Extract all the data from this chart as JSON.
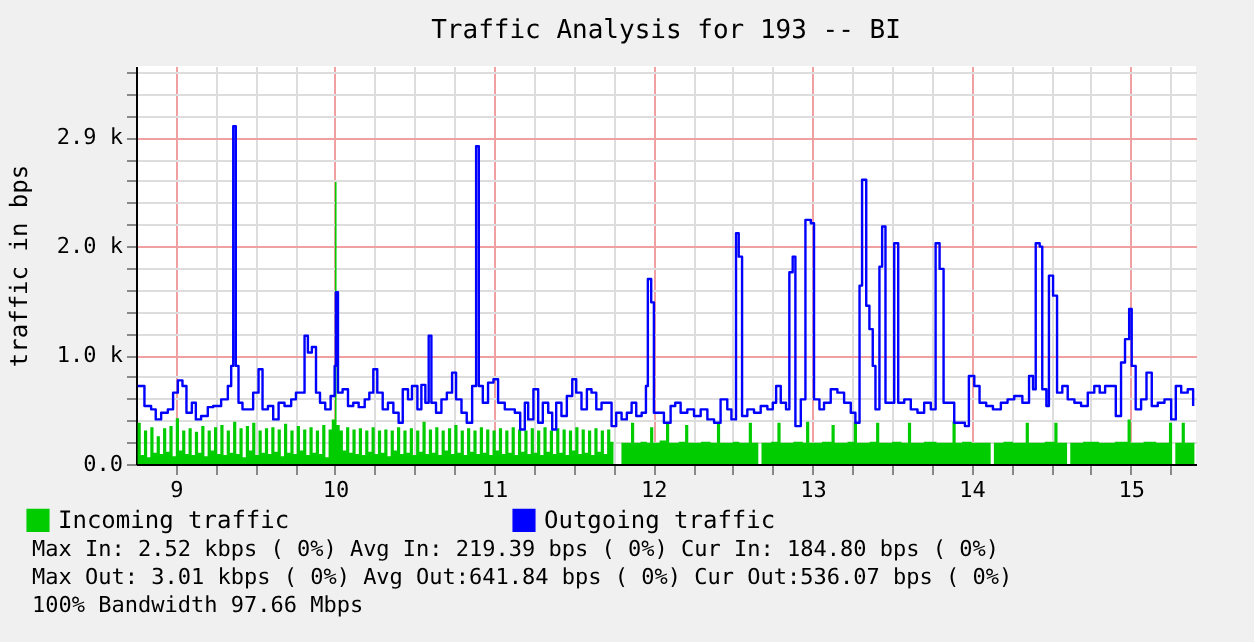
{
  "chart_data": {
    "type": "line",
    "title": "Traffic Analysis for 193 -- BI",
    "ylabel": "traffic in bps",
    "xlim": [
      8.75,
      15.41
    ],
    "ylim": [
      0,
      3570
    ],
    "xticks": [
      9,
      {
        "value": 9.25,
        "label": null
      },
      {
        "value": 9.5,
        "label": null
      },
      {
        "value": 9.75,
        "label": null
      },
      10,
      {
        "value": 10.25,
        "label": null
      },
      {
        "value": 10.5,
        "label": null
      },
      {
        "value": 10.75,
        "label": null
      },
      11,
      {
        "value": 11.25,
        "label": null
      },
      {
        "value": 11.5,
        "label": null
      },
      {
        "value": 11.75,
        "label": null
      },
      12,
      {
        "value": 12.25,
        "label": null
      },
      {
        "value": 12.5,
        "label": null
      },
      {
        "value": 12.75,
        "label": null
      },
      13,
      {
        "value": 13.25,
        "label": null
      },
      {
        "value": 13.5,
        "label": null
      },
      {
        "value": 13.75,
        "label": null
      },
      14,
      {
        "value": 14.25,
        "label": null
      },
      {
        "value": 14.5,
        "label": null
      },
      {
        "value": 14.75,
        "label": null
      },
      15,
      {
        "value": 15.25,
        "label": null
      }
    ],
    "yticks": [
      {
        "value": 0,
        "label": "0.0"
      },
      {
        "value": 195,
        "label": null
      },
      {
        "value": 391,
        "label": null
      },
      {
        "value": 586,
        "label": null
      },
      {
        "value": 781,
        "label": null
      },
      {
        "value": 977,
        "label": "1.0 k"
      },
      {
        "value": 1172,
        "label": null
      },
      {
        "value": 1367,
        "label": null
      },
      {
        "value": 1563,
        "label": null
      },
      {
        "value": 1758,
        "label": null
      },
      {
        "value": 1953,
        "label": "2.0 k"
      },
      {
        "value": 2148,
        "label": null
      },
      {
        "value": 2344,
        "label": null
      },
      {
        "value": 2539,
        "label": null
      },
      {
        "value": 2734,
        "label": null
      },
      {
        "value": 2930,
        "label": "2.9 k"
      },
      {
        "value": 3125,
        "label": null
      },
      {
        "value": 3320,
        "label": null
      },
      {
        "value": 3516,
        "label": null
      }
    ],
    "grid": true,
    "legend": "bottom",
    "marker": "none",
    "line_style": "solid",
    "series": [
      {
        "name": "Incoming traffic",
        "type": "area",
        "color": "#00cc00",
        "x": [
          8.76,
          8.78,
          8.8,
          8.82,
          8.84,
          8.86,
          8.88,
          8.9,
          8.92,
          8.94,
          8.96,
          8.98,
          9.0,
          9.02,
          9.04,
          9.06,
          9.08,
          9.1,
          9.12,
          9.14,
          9.16,
          9.18,
          9.2,
          9.22,
          9.24,
          9.26,
          9.28,
          9.3,
          9.32,
          9.34,
          9.36,
          9.38,
          9.4,
          9.42,
          9.44,
          9.46,
          9.48,
          9.5,
          9.52,
          9.54,
          9.56,
          9.58,
          9.6,
          9.62,
          9.64,
          9.66,
          9.68,
          9.7,
          9.72,
          9.74,
          9.76,
          9.78,
          9.8,
          9.82,
          9.84,
          9.86,
          9.88,
          9.9,
          9.92,
          9.94,
          9.96,
          9.98,
          10.0,
          10.01,
          10.03,
          10.05,
          10.07,
          10.09,
          10.11,
          10.13,
          10.15,
          10.17,
          10.19,
          10.21,
          10.23,
          10.25,
          10.27,
          10.29,
          10.31,
          10.33,
          10.35,
          10.37,
          10.39,
          10.41,
          10.43,
          10.45,
          10.47,
          10.49,
          10.51,
          10.53,
          10.55,
          10.57,
          10.59,
          10.61,
          10.63,
          10.65,
          10.67,
          10.69,
          10.71,
          10.73,
          10.75,
          10.77,
          10.79,
          10.81,
          10.83,
          10.85,
          10.87,
          10.89,
          10.91,
          10.93,
          10.95,
          10.97,
          10.99,
          11.01,
          11.03,
          11.05,
          11.07,
          11.09,
          11.11,
          11.13,
          11.15,
          11.17,
          11.19,
          11.21,
          11.23,
          11.25,
          11.27,
          11.29,
          11.31,
          11.33,
          11.35,
          11.37,
          11.39,
          11.41,
          11.43,
          11.45,
          11.47,
          11.49,
          11.51,
          11.53,
          11.55,
          11.57,
          11.59,
          11.61,
          11.63,
          11.65,
          11.67,
          11.69,
          11.71,
          11.73,
          11.75,
          11.8,
          11.84,
          11.86,
          11.88,
          11.92,
          11.96,
          11.98,
          12.0,
          12.04,
          12.08,
          12.1,
          12.16,
          12.2,
          12.22,
          12.3,
          12.36,
          12.4,
          12.42,
          12.5,
          12.54,
          12.6,
          12.62,
          12.66,
          12.68,
          12.74,
          12.78,
          12.8,
          12.88,
          12.94,
          12.96,
          12.98,
          13.06,
          13.12,
          13.14,
          13.22,
          13.26,
          13.28,
          13.36,
          13.4,
          13.42,
          13.5,
          13.56,
          13.6,
          13.62,
          13.7,
          13.78,
          13.88,
          13.9,
          13.94,
          14.0,
          14.06,
          14.12,
          14.14,
          14.2,
          14.26,
          14.34,
          14.36,
          14.46,
          14.52,
          14.54,
          14.6,
          14.62,
          14.7,
          14.8,
          14.9,
          14.98,
          15.0,
          15.08,
          15.16,
          15.24,
          15.26,
          15.28,
          15.32,
          15.34,
          15.4
        ],
        "values": [
          370,
          80,
          300,
          60,
          330,
          100,
          250,
          90,
          320,
          110,
          340,
          70,
          410,
          120,
          300,
          90,
          320,
          80,
          290,
          100,
          340,
          70,
          300,
          120,
          330,
          90,
          350,
          80,
          300,
          100,
          380,
          90,
          320,
          60,
          340,
          120,
          370,
          80,
          300,
          100,
          320,
          90,
          330,
          110,
          310,
          70,
          360,
          100,
          300,
          90,
          340,
          120,
          310,
          80,
          330,
          100,
          300,
          90,
          350,
          60,
          310,
          400,
          2530,
          350,
          300,
          120,
          330,
          100,
          310,
          90,
          320,
          80,
          300,
          110,
          330,
          90,
          300,
          100,
          310,
          70,
          300,
          120,
          330,
          90,
          300,
          100,
          320,
          80,
          300,
          110,
          380,
          90,
          310,
          100,
          330,
          80,
          300,
          120,
          320,
          90,
          350,
          100,
          300,
          80,
          320,
          110,
          300,
          90,
          330,
          100,
          310,
          80,
          300,
          120,
          320,
          90,
          300,
          100,
          330,
          80,
          310,
          110,
          300,
          90,
          320,
          100,
          300,
          80,
          330,
          110,
          300,
          90,
          320,
          100,
          310,
          80,
          300,
          120,
          330,
          90,
          310,
          100,
          300,
          80,
          320,
          110,
          300,
          90,
          310,
          200,
          0,
          190,
          190,
          370,
          190,
          200,
          190,
          330,
          190,
          210,
          370,
          190,
          200,
          350,
          190,
          200,
          190,
          360,
          190,
          200,
          190,
          370,
          190,
          0,
          190,
          200,
          370,
          190,
          200,
          190,
          380,
          190,
          200,
          350,
          190,
          200,
          380,
          190,
          200,
          370,
          190,
          200,
          190,
          370,
          190,
          200,
          190,
          380,
          190,
          200,
          190,
          190,
          0,
          190,
          200,
          190,
          370,
          190,
          200,
          370,
          190,
          0,
          190,
          200,
          190,
          200,
          400,
          190,
          200,
          190,
          370,
          0,
          190,
          370,
          190,
          200
        ]
      },
      {
        "name": "Outgoing traffic",
        "type": "line",
        "color": "#0000ff",
        "x": [
          8.761,
          8.79,
          8.803,
          8.845,
          8.874,
          8.908,
          8.95,
          8.983,
          9.013,
          9.042,
          9.067,
          9.101,
          9.126,
          9.159,
          9.201,
          9.235,
          9.285,
          9.327,
          9.348,
          9.361,
          9.377,
          9.394,
          9.419,
          9.453,
          9.486,
          9.52,
          9.545,
          9.579,
          9.612,
          9.646,
          9.683,
          9.725,
          9.755,
          9.788,
          9.809,
          9.83,
          9.855,
          9.881,
          9.906,
          9.939,
          9.973,
          9.998,
          10.006,
          10.019,
          10.048,
          10.082,
          10.115,
          10.149,
          10.187,
          10.216,
          10.241,
          10.266,
          10.3,
          10.333,
          10.367,
          10.4,
          10.426,
          10.459,
          10.484,
          10.518,
          10.543,
          10.568,
          10.589,
          10.606,
          10.635,
          10.669,
          10.703,
          10.736,
          10.761,
          10.795,
          10.828,
          10.862,
          10.887,
          10.904,
          10.929,
          10.962,
          10.996,
          11.025,
          11.067,
          11.096,
          11.13,
          11.164,
          11.193,
          11.214,
          11.247,
          11.277,
          11.306,
          11.34,
          11.365,
          11.39,
          11.423,
          11.457,
          11.491,
          11.516,
          11.549,
          11.583,
          11.612,
          11.642,
          11.675,
          11.709,
          11.738,
          11.767,
          11.801,
          11.834,
          11.864,
          11.893,
          11.927,
          11.954,
          11.966,
          11.987,
          12.004,
          12.038,
          12.067,
          12.109,
          12.138,
          12.172,
          12.214,
          12.256,
          12.298,
          12.34,
          12.382,
          12.423,
          12.465,
          12.491,
          12.52,
          12.537,
          12.558,
          12.591,
          12.633,
          12.675,
          12.717,
          12.751,
          12.772,
          12.801,
          12.834,
          12.855,
          12.876,
          12.893,
          12.927,
          12.956,
          12.99,
          13.01,
          13.044,
          13.073,
          13.115,
          13.157,
          13.199,
          13.241,
          13.27,
          13.296,
          13.312,
          13.338,
          13.358,
          13.379,
          13.396,
          13.421,
          13.438,
          13.459,
          13.488,
          13.514,
          13.539,
          13.577,
          13.618,
          13.66,
          13.702,
          13.744,
          13.774,
          13.799,
          13.824,
          13.857,
          13.891,
          13.933,
          13.958,
          13.983,
          14.017,
          14.05,
          14.092,
          14.134,
          14.184,
          14.226,
          14.268,
          14.319,
          14.361,
          14.386,
          14.403,
          14.428,
          14.444,
          14.47,
          14.486,
          14.512,
          14.537,
          14.57,
          14.604,
          14.646,
          14.688,
          14.73,
          14.771,
          14.805,
          14.839,
          14.876,
          14.906,
          14.939,
          14.964,
          14.99,
          15.006,
          15.031,
          15.065,
          15.099,
          15.132,
          15.17,
          15.212,
          15.254,
          15.283,
          15.317,
          15.358,
          15.392
        ],
        "values": [
          700,
          700,
          520,
          490,
          400,
          460,
          490,
          640,
          750,
          700,
          460,
          550,
          400,
          430,
          510,
          520,
          580,
          700,
          880,
          3030,
          880,
          550,
          490,
          490,
          640,
          850,
          490,
          520,
          400,
          550,
          520,
          580,
          640,
          640,
          1150,
          1000,
          1050,
          640,
          550,
          490,
          610,
          880,
          1540,
          640,
          670,
          520,
          550,
          510,
          580,
          640,
          850,
          640,
          490,
          550,
          460,
          370,
          670,
          580,
          700,
          490,
          710,
          550,
          1150,
          550,
          460,
          580,
          640,
          820,
          580,
          460,
          370,
          700,
          2850,
          700,
          550,
          730,
          760,
          550,
          490,
          490,
          460,
          310,
          550,
          400,
          670,
          370,
          550,
          460,
          310,
          550,
          430,
          610,
          760,
          640,
          490,
          670,
          640,
          490,
          550,
          550,
          340,
          460,
          400,
          460,
          550,
          430,
          460,
          700,
          1660,
          1450,
          460,
          460,
          370,
          520,
          550,
          460,
          490,
          430,
          490,
          400,
          370,
          580,
          490,
          400,
          2070,
          1860,
          430,
          490,
          460,
          520,
          490,
          550,
          700,
          550,
          490,
          1720,
          1860,
          340,
          580,
          2190,
          2160,
          580,
          490,
          550,
          670,
          640,
          550,
          460,
          370,
          1600,
          2550,
          1420,
          1210,
          880,
          490,
          1770,
          2130,
          550,
          550,
          1980,
          550,
          580,
          490,
          460,
          550,
          490,
          1980,
          1750,
          550,
          550,
          370,
          370,
          340,
          790,
          700,
          550,
          520,
          490,
          550,
          580,
          610,
          550,
          790,
          670,
          1980,
          1950,
          670,
          520,
          1690,
          1510,
          640,
          700,
          580,
          550,
          520,
          640,
          700,
          640,
          700,
          700,
          430,
          910,
          1120,
          1390,
          880,
          490,
          580,
          820,
          520,
          550,
          580,
          400,
          700,
          640,
          670,
          520
        ]
      }
    ],
    "annotations": [
      "Max In:   2.52 kbps (  0%)  Avg In: 219.39  bps (  0%)  Cur In: 184.80  bps (  0%)",
      "Max Out:  3.01 kbps (  0%)  Avg Out:641.84  bps (  0%)  Cur Out:536.07  bps (  0%)",
      "100% Bandwidth 97.66 Mbps"
    ]
  }
}
